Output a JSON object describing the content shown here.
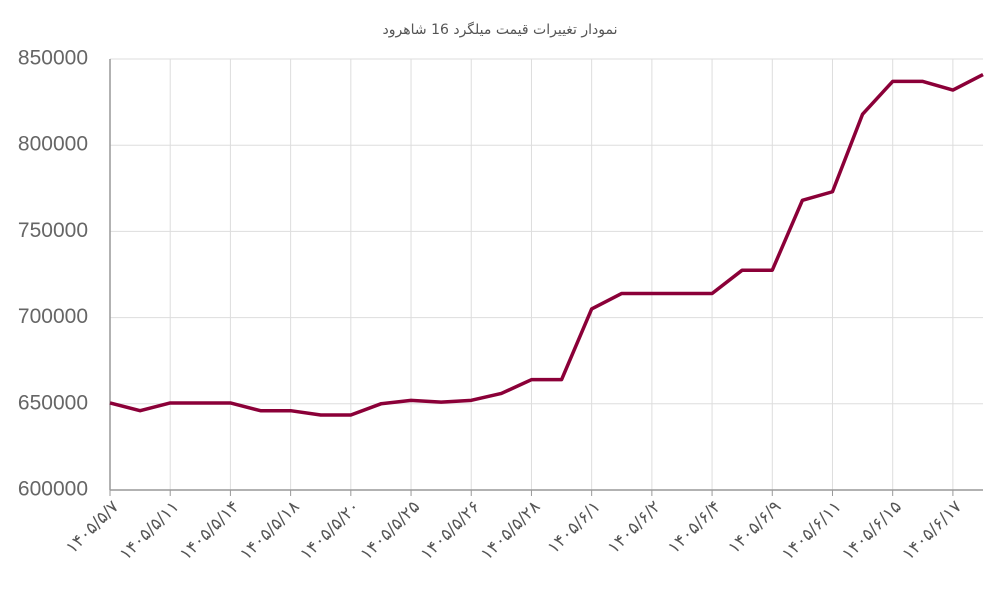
{
  "chart_data": {
    "type": "line",
    "title": "نمودار تغییرات قیمت میلگرد 16 شاهرود",
    "categories": [
      "۱۴۰۵/۵/۷",
      null,
      "۱۴۰۵/۵/۱۱",
      null,
      "۱۴۰۵/۵/۱۴",
      null,
      "۱۴۰۵/۵/۱۸",
      null,
      "۱۴۰۵/۵/۲۰",
      null,
      "۱۴۰۵/۵/۲۵",
      null,
      "۱۴۰۵/۵/۲۶",
      null,
      "۱۴۰۵/۵/۲۸",
      null,
      "۱۴۰۵/۶/۱",
      null,
      "۱۴۰۵/۶/۲",
      null,
      "۱۴۰۵/۶/۴",
      null,
      "۱۴۰۵/۶/۹",
      null,
      "۱۴۰۵/۶/۱۱",
      null,
      "۱۴۰۵/۶/۱۵",
      null,
      "۱۴۰۵/۶/۱۷",
      null
    ],
    "series": [
      {
        "color": "#8b0038",
        "values": [
          650500,
          646000,
          650500,
          650500,
          650500,
          646000,
          646000,
          643500,
          643500,
          650000,
          652000,
          651000,
          652000,
          656000,
          664000,
          664000,
          705000,
          714000,
          714000,
          714000,
          714000,
          727500,
          727500,
          768000,
          773000,
          818000,
          837000,
          837000,
          832000,
          841000
        ]
      }
    ],
    "ylim": [
      600000,
      850000
    ],
    "yticks": [
      600000,
      650000,
      700000,
      750000,
      800000,
      850000
    ],
    "grid": true
  }
}
